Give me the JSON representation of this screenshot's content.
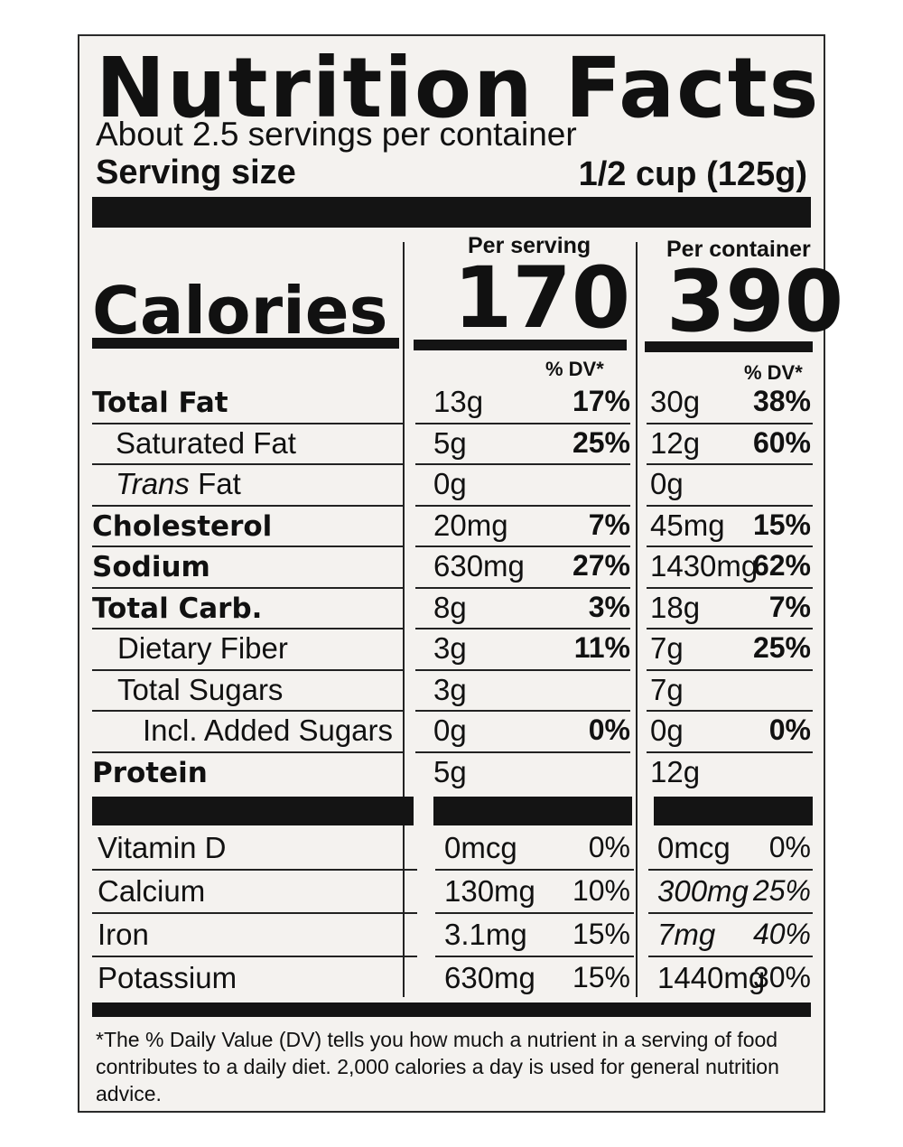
{
  "label": {
    "title": "Nutrition Facts",
    "servings_per_container": "About 2.5 servings per container",
    "serving_size_label": "Serving size",
    "serving_size_value": "1/2 cup (125g)",
    "col_per_serving": "Per serving",
    "col_per_container": "Per container",
    "calories_label": "Calories",
    "calories_per_serving": "170",
    "calories_per_container": "390",
    "dv_header": "% DV*",
    "nutrients": [
      {
        "name": "Total Fat",
        "s_amt": "13g",
        "s_dv": "17%",
        "c_amt": "30g",
        "c_dv": "38%"
      },
      {
        "name": "Saturated Fat",
        "s_amt": "5g",
        "s_dv": "25%",
        "c_amt": "12g",
        "c_dv": "60%"
      },
      {
        "name_italic": "Trans",
        "name_rest": " Fat",
        "s_amt": "0g",
        "s_dv": "",
        "c_amt": "0g",
        "c_dv": ""
      },
      {
        "name": "Cholesterol",
        "s_amt": "20mg",
        "s_dv": "7%",
        "c_amt": "45mg",
        "c_dv": "15%"
      },
      {
        "name": "Sodium",
        "s_amt": "630mg",
        "s_dv": "27%",
        "c_amt": "1430mg",
        "c_dv": "62%"
      },
      {
        "name": "Total Carb.",
        "s_amt": "8g",
        "s_dv": "3%",
        "c_amt": "18g",
        "c_dv": "7%"
      },
      {
        "name": "Dietary Fiber",
        "s_amt": "3g",
        "s_dv": "11%",
        "c_amt": "7g",
        "c_dv": "25%"
      },
      {
        "name": "Total Sugars",
        "s_amt": "3g",
        "s_dv": "",
        "c_amt": "7g",
        "c_dv": ""
      },
      {
        "name": "Incl. Added Sugars",
        "s_amt": "0g",
        "s_dv": "0%",
        "c_amt": "0g",
        "c_dv": "0%"
      },
      {
        "name": "Protein",
        "s_amt": "5g",
        "s_dv": "",
        "c_amt": "12g",
        "c_dv": ""
      }
    ],
    "vitamins": [
      {
        "name": "Vitamin D",
        "s_amt": "0mcg",
        "s_dv": "0%",
        "c_amt": "0mcg",
        "c_dv": "0%"
      },
      {
        "name": "Calcium",
        "s_amt": "130mg",
        "s_dv": "10%",
        "c_amt": "300mg",
        "c_dv": "25%"
      },
      {
        "name": "Iron",
        "s_amt": "3.1mg",
        "s_dv": "15%",
        "c_amt": "7mg",
        "c_dv": "40%"
      },
      {
        "name": "Potassium",
        "s_amt": "630mg",
        "s_dv": "15%",
        "c_amt": "1440mg",
        "c_dv": "30%"
      }
    ],
    "footnote": "*The % Daily Value (DV) tells you how much a nutrient in a serving of food contributes to a daily diet. 2,000 calories a day is used for general nutrition advice."
  }
}
